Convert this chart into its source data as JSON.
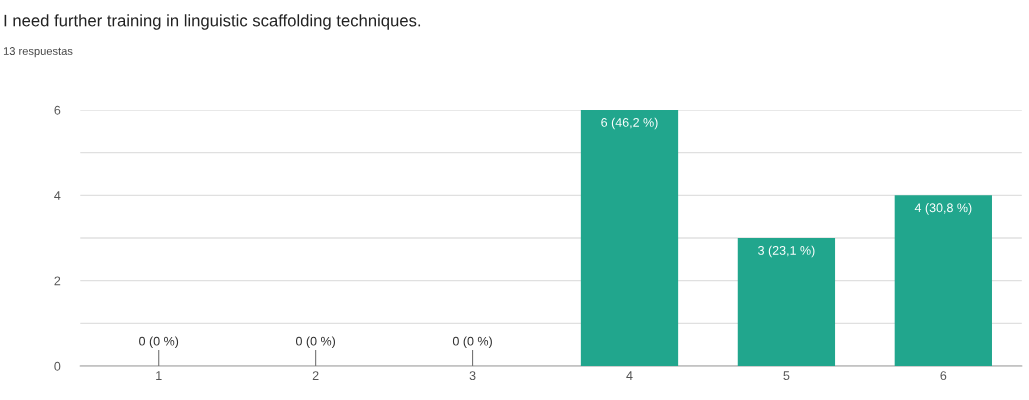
{
  "chart_data": {
    "type": "bar",
    "title": "I need further training in linguistic scaffolding techniques.",
    "subtitle": "13 respuestas",
    "categories": [
      "1",
      "2",
      "3",
      "4",
      "5",
      "6"
    ],
    "values": [
      0,
      0,
      0,
      6,
      3,
      4
    ],
    "color": "#21a68d",
    "value_labels": [
      "0 (0 %)",
      "0 (0 %)",
      "0 (0 %)",
      "6 (46,2 %)",
      "3 (23,1 %)",
      "4 (30,8 %)"
    ],
    "ylim": [
      0,
      6
    ],
    "yticks": [
      0,
      {
        "value": 1,
        "label": null
      },
      2,
      {
        "value": 3,
        "label": null
      },
      4,
      {
        "value": 5,
        "label": null
      },
      6
    ],
    "grid": "y"
  }
}
